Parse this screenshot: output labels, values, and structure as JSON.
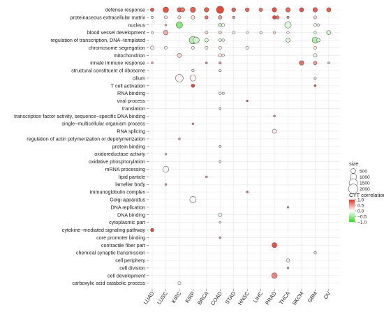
{
  "chart_data": {
    "type": "scatter",
    "title": "",
    "xlabel": "",
    "ylabel": "",
    "x_categories": [
      "LUAD",
      "LUSC",
      "KIRC",
      "KIRP",
      "BRCA",
      "COAD",
      "STAD",
      "HNSC",
      "LIHC",
      "PRAD",
      "THCA",
      "SKCM",
      "GBM",
      "OV"
    ],
    "y_categories": [
      "defense response",
      "proteinaceous extracellular matrix",
      "nucleus",
      "blood vessel development",
      "regulation of transcription, DNA−templated",
      "chromosome segregation",
      "mitochondrion",
      "innate immune response",
      "structural constituent of ribosome",
      "cilium",
      "T cell activation",
      "RNA binding",
      "viral process",
      "translation",
      "transcription factor activity, sequence−specific DNA binding",
      "single−multicellular organism process",
      "RNA splicing",
      "regulation of actin polymerization or depolymerization",
      "protein binding",
      "oxidoreductase activity",
      "oxidative phosphorylation",
      "mRNA processing",
      "lipid particle",
      "lamellar body",
      "immunoglobulin complex",
      "Golgi apparatus",
      "DNA replication",
      "DNA binding",
      "cytoplasmic part",
      "cytokine−mediated signaling pathway",
      "core promoter binding",
      "contractile fiber part",
      "chemical synaptic transmission",
      "cell periphery",
      "cell division",
      "cell development",
      "carboxylic acid catabolic process"
    ],
    "size_legend": {
      "title": "size",
      "values": [
        500,
        1000,
        1500,
        2000
      ],
      "labels": [
        "500",
        "1000",
        "1500",
        "2000"
      ]
    },
    "color_legend": {
      "title": "CYT correlation",
      "range": [
        -1.0,
        1.0
      ],
      "ticks": [
        1.0,
        0.5,
        0.0,
        -0.5,
        -1.0
      ],
      "labels": [
        "1.0",
        "0.5",
        "0.0",
        "−0.5",
        "−1.0"
      ],
      "colors": {
        "high": "#e8321e",
        "mid": "#ffffff",
        "low": "#33dd22"
      }
    },
    "grid": true,
    "points": [
      {
        "x": "LUAD",
        "y": "defense response",
        "size": 300,
        "corr": 0.8
      },
      {
        "x": "LUSC",
        "y": "defense response",
        "size": 700,
        "corr": 0.85
      },
      {
        "x": "KIRC",
        "y": "defense response",
        "size": 450,
        "corr": 0.8
      },
      {
        "x": "KIRC",
        "y": "defense response",
        "size": 450,
        "corr": 0.7
      },
      {
        "x": "KIRP",
        "y": "defense response",
        "size": 600,
        "corr": 0.8
      },
      {
        "x": "BRCA",
        "y": "defense response",
        "size": 450,
        "corr": 0.8
      },
      {
        "x": "COAD",
        "y": "defense response",
        "size": 1150,
        "corr": 0.9
      },
      {
        "x": "STAD",
        "y": "defense response",
        "size": 350,
        "corr": 0.75
      },
      {
        "x": "HNSC",
        "y": "defense response",
        "size": 350,
        "corr": 0.75
      },
      {
        "x": "LIHC",
        "y": "defense response",
        "size": 300,
        "corr": 0.7
      },
      {
        "x": "PRAD",
        "y": "defense response",
        "size": 450,
        "corr": 0.85
      },
      {
        "x": "THCA",
        "y": "defense response",
        "size": 450,
        "corr": 0.75
      },
      {
        "x": "SKCM",
        "y": "defense response",
        "size": 400,
        "corr": 0.85
      },
      {
        "x": "GBM",
        "y": "defense response",
        "size": 450,
        "corr": 0.8
      },
      {
        "x": "OV",
        "y": "defense response",
        "size": 400,
        "corr": 0.8
      },
      {
        "x": "LUAD",
        "y": "proteinaceous extracellular matrix",
        "size": 120,
        "corr": 0.1
      },
      {
        "x": "LUSC",
        "y": "proteinaceous extracellular matrix",
        "size": 200,
        "corr": 0.15
      },
      {
        "x": "KIRC",
        "y": "proteinaceous extracellular matrix",
        "size": 200,
        "corr": 0.15
      },
      {
        "x": "KIRP",
        "y": "proteinaceous extracellular matrix",
        "size": 300,
        "corr": 0.15
      },
      {
        "x": "BRCA",
        "y": "proteinaceous extracellular matrix",
        "size": 250,
        "corr": 0.7
      },
      {
        "x": "COAD",
        "y": "proteinaceous extracellular matrix",
        "size": 300,
        "corr": 0.5
      },
      {
        "x": "STAD",
        "y": "proteinaceous extracellular matrix",
        "size": 120,
        "corr": 0.5
      },
      {
        "x": "PRAD",
        "y": "proteinaceous extracellular matrix",
        "size": 300,
        "corr": 0.9
      },
      {
        "x": "PRAD",
        "y": "proteinaceous extracellular matrix",
        "size": 250,
        "corr": 0.7
      },
      {
        "x": "THCA",
        "y": "proteinaceous extracellular matrix",
        "size": 120,
        "corr": 0.5
      },
      {
        "x": "GBM",
        "y": "proteinaceous extracellular matrix",
        "size": 200,
        "corr": 0.2
      },
      {
        "x": "KIRC",
        "y": "nucleus",
        "size": 900,
        "corr": -0.6
      },
      {
        "x": "LUSC",
        "y": "nucleus",
        "size": 80,
        "corr": 0.3
      },
      {
        "x": "COAD",
        "y": "nucleus",
        "size": 250,
        "corr": -0.3
      },
      {
        "x": "COAD",
        "y": "nucleus",
        "size": 200,
        "corr": -0.1
      },
      {
        "x": "THCA",
        "y": "nucleus",
        "size": 900,
        "corr": -0.15
      },
      {
        "x": "GBM",
        "y": "nucleus",
        "size": 200,
        "corr": -0.1
      },
      {
        "x": "GBM",
        "y": "nucleus",
        "size": 150,
        "corr": 0.1
      },
      {
        "x": "LUAD",
        "y": "blood vessel development",
        "size": 100,
        "corr": 0.1
      },
      {
        "x": "LUSC",
        "y": "blood vessel development",
        "size": 500,
        "corr": 0.4
      },
      {
        "x": "BRCA",
        "y": "blood vessel development",
        "size": 200,
        "corr": 0.2
      },
      {
        "x": "COAD",
        "y": "blood vessel development",
        "size": 200,
        "corr": 0.2
      },
      {
        "x": "STAD",
        "y": "blood vessel development",
        "size": 200,
        "corr": 0.1
      },
      {
        "x": "HNSC",
        "y": "blood vessel development",
        "size": 150,
        "corr": 0.1
      },
      {
        "x": "LIHC",
        "y": "blood vessel development",
        "size": 120,
        "corr": 0.1
      },
      {
        "x": "PRAD",
        "y": "blood vessel development",
        "size": 150,
        "corr": 0.2
      },
      {
        "x": "THCA",
        "y": "blood vessel development",
        "size": 150,
        "corr": 0.1
      },
      {
        "x": "GBM",
        "y": "blood vessel development",
        "size": 150,
        "corr": -0.2
      },
      {
        "x": "OV",
        "y": "blood vessel development",
        "size": 400,
        "corr": -0.2
      },
      {
        "x": "KIRP",
        "y": "regulation of transcription, DNA−templated",
        "size": 1200,
        "corr": -0.35
      },
      {
        "x": "KIRP",
        "y": "regulation of transcription, DNA−templated",
        "size": 900,
        "corr": -0.25
      },
      {
        "x": "BRCA",
        "y": "regulation of transcription, DNA−templated",
        "size": 300,
        "corr": -0.2
      },
      {
        "x": "COAD",
        "y": "regulation of transcription, DNA−templated",
        "size": 200,
        "corr": -0.2
      },
      {
        "x": "COAD",
        "y": "regulation of transcription, DNA−templated",
        "size": 150,
        "corr": 0.1
      },
      {
        "x": "THCA",
        "y": "regulation of transcription, DNA−templated",
        "size": 400,
        "corr": -0.2
      },
      {
        "x": "GBM",
        "y": "regulation of transcription, DNA−templated",
        "size": 800,
        "corr": -0.4
      },
      {
        "x": "GBM",
        "y": "regulation of transcription, DNA−templated",
        "size": 300,
        "corr": -0.2
      },
      {
        "x": "LUAD",
        "y": "chromosome segregation",
        "size": 300,
        "corr": 0.1
      },
      {
        "x": "LUSC",
        "y": "chromosome segregation",
        "size": 200,
        "corr": 0.1
      },
      {
        "x": "KIRP",
        "y": "chromosome segregation",
        "size": 200,
        "corr": 0.1
      },
      {
        "x": "BRCA",
        "y": "chromosome segregation",
        "size": 200,
        "corr": 0.1
      },
      {
        "x": "COAD",
        "y": "chromosome segregation",
        "size": 200,
        "corr": 0.1
      },
      {
        "x": "HNSC",
        "y": "chromosome segregation",
        "size": 200,
        "corr": 0.1
      },
      {
        "x": "GBM",
        "y": "chromosome segregation",
        "size": 200,
        "corr": 0.1
      },
      {
        "x": "KIRC",
        "y": "mitochondrion",
        "size": 400,
        "corr": 0.2
      },
      {
        "x": "COAD",
        "y": "mitochondrion",
        "size": 250,
        "corr": 0.1
      },
      {
        "x": "COAD",
        "y": "mitochondrion",
        "size": 150,
        "corr": 0.1
      },
      {
        "x": "GBM",
        "y": "mitochondrion",
        "size": 300,
        "corr": 0.1
      },
      {
        "x": "LUAD",
        "y": "innate immune response",
        "size": 80,
        "corr": 0.4
      },
      {
        "x": "BRCA",
        "y": "innate immune response",
        "size": 80,
        "corr": 0.6
      },
      {
        "x": "COAD",
        "y": "innate immune response",
        "size": 120,
        "corr": 0.5
      },
      {
        "x": "SKCM",
        "y": "innate immune response",
        "size": 450,
        "corr": 0.7
      },
      {
        "x": "GBM",
        "y": "innate immune response",
        "size": 300,
        "corr": 0.5
      },
      {
        "x": "OV",
        "y": "innate immune response",
        "size": 80,
        "corr": 0.3
      },
      {
        "x": "KIRP",
        "y": "structural constituent of ribosome",
        "size": 150,
        "corr": 0.1
      },
      {
        "x": "COAD",
        "y": "structural constituent of ribosome",
        "size": 120,
        "corr": 0.1
      },
      {
        "x": "KIRC",
        "y": "cilium",
        "size": 1300,
        "corr": 0.05
      },
      {
        "x": "KIRP",
        "y": "cilium",
        "size": 800,
        "corr": 0.05
      },
      {
        "x": "GBM",
        "y": "cilium",
        "size": 120,
        "corr": 0.1
      },
      {
        "x": "KIRP",
        "y": "T cell activation",
        "size": 250,
        "corr": 0.9
      },
      {
        "x": "GBM",
        "y": "T cell activation",
        "size": 100,
        "corr": 0.8
      },
      {
        "x": "COAD",
        "y": "RNA binding",
        "size": 150,
        "corr": 0.1
      },
      {
        "x": "COAD",
        "y": "RNA binding",
        "size": 120,
        "corr": 0.1
      },
      {
        "x": "HNSC",
        "y": "viral process",
        "size": 80,
        "corr": 0.7
      },
      {
        "x": "COAD",
        "y": "translation",
        "size": 100,
        "corr": 0.2
      },
      {
        "x": "PRAD",
        "y": "transcription factor activity, sequence−specific DNA binding",
        "size": 80,
        "corr": 0.5
      },
      {
        "x": "KIRP",
        "y": "single−multicellular organism process",
        "size": 80,
        "corr": 0.5
      },
      {
        "x": "PRAD",
        "y": "RNA splicing",
        "size": 400,
        "corr": 0.1
      },
      {
        "x": "KIRC",
        "y": "regulation of actin polymerization or depolymerization",
        "size": 80,
        "corr": 0.5
      },
      {
        "x": "COAD",
        "y": "protein binding",
        "size": 100,
        "corr": 0.2
      },
      {
        "x": "LUSC",
        "y": "oxidoreductase activity",
        "size": 80,
        "corr": 0.2
      },
      {
        "x": "COAD",
        "y": "oxidative phosphorylation",
        "size": 100,
        "corr": 0.1
      },
      {
        "x": "LUSC",
        "y": "mRNA processing",
        "size": 800,
        "corr": 0.05
      },
      {
        "x": "BRCA",
        "y": "lipid particle",
        "size": 80,
        "corr": 0.5
      },
      {
        "x": "LUSC",
        "y": "lamellar body",
        "size": 80,
        "corr": 0.5
      },
      {
        "x": "HNSC",
        "y": "immunoglobulin complex",
        "size": 80,
        "corr": 0.8
      },
      {
        "x": "KIRP",
        "y": "Golgi apparatus",
        "size": 900,
        "corr": 0.05
      },
      {
        "x": "THCA",
        "y": "DNA replication",
        "size": 80,
        "corr": 0.5
      },
      {
        "x": "COAD",
        "y": "DNA binding",
        "size": 300,
        "corr": -0.1
      },
      {
        "x": "COAD",
        "y": "cytoplasmic part",
        "size": 80,
        "corr": -0.2
      },
      {
        "x": "LUAD",
        "y": "cytokine−mediated signaling pathway",
        "size": 250,
        "corr": 0.9
      },
      {
        "x": "COAD",
        "y": "core promoter binding",
        "size": 80,
        "corr": 0.5
      },
      {
        "x": "PRAD",
        "y": "contractile fiber part",
        "size": 550,
        "corr": 0.85
      },
      {
        "x": "GBM",
        "y": "chemical synaptic transmission",
        "size": 150,
        "corr": 0.2
      },
      {
        "x": "THCA",
        "y": "cell periphery",
        "size": 250,
        "corr": 0.1
      },
      {
        "x": "THCA",
        "y": "cell division",
        "size": 80,
        "corr": 0.5
      },
      {
        "x": "PRAD",
        "y": "cell development",
        "size": 700,
        "corr": 0.6
      },
      {
        "x": "KIRC",
        "y": "carboxylic acid catabolic process",
        "size": 200,
        "corr": 0.1
      }
    ]
  }
}
